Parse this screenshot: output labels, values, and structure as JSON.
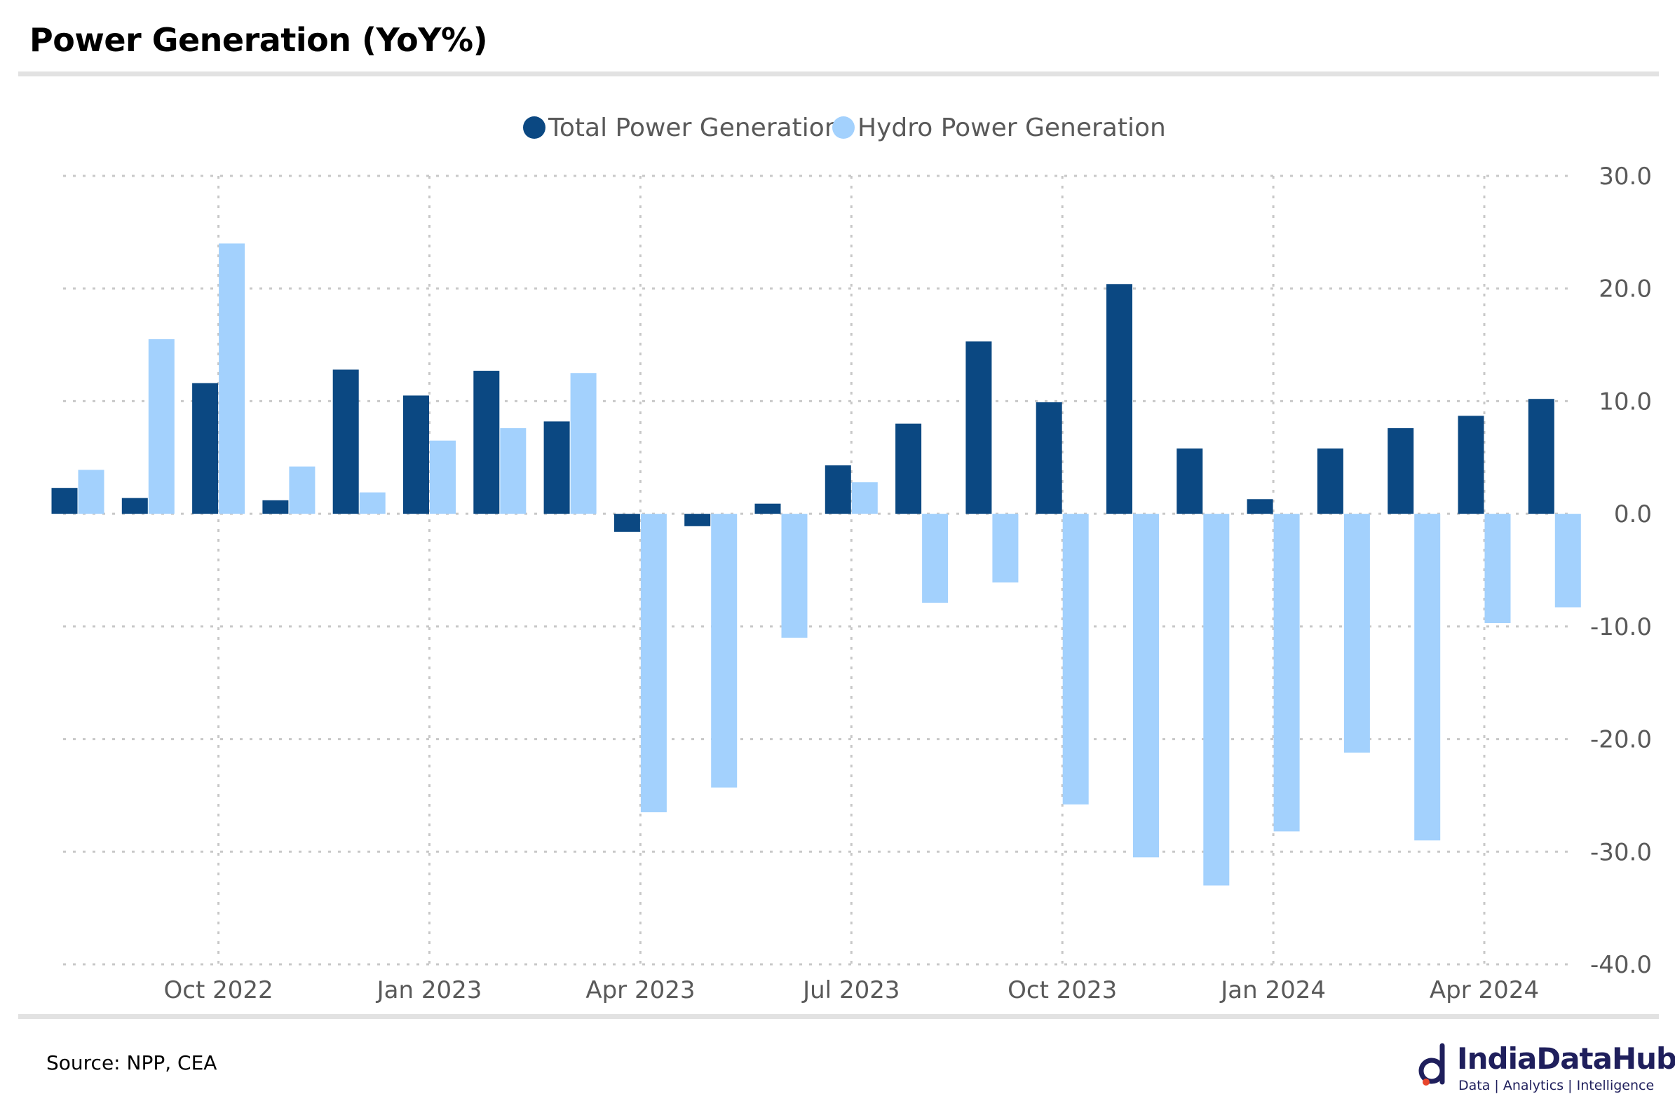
{
  "title": "Power Generation (YoY%)",
  "source": "Source: NPP, CEA",
  "logo": {
    "name": "IndiaDataHub",
    "tagline": "Data | Analytics | Intelligence"
  },
  "colors": {
    "total": "#0b4882",
    "hydro": "#a3d1fd",
    "grid": "#c8c8c8",
    "rule": "#e2e2e2"
  },
  "chart_data": {
    "type": "bar",
    "title": "Power Generation (YoY%)",
    "legend_position": "top",
    "grid": true,
    "y_axis_position": "right",
    "ylim": [
      -40,
      30
    ],
    "y_ticks": [
      "30.0",
      "20.0",
      "10.0",
      "0.0",
      "-10.0",
      "-20.0",
      "-30.0",
      "-40.0"
    ],
    "y_tick_values": [
      30,
      20,
      10,
      0,
      -10,
      -20,
      -30,
      -40
    ],
    "categories": [
      "Aug 2022",
      "Sep 2022",
      "Oct 2022",
      "Nov 2022",
      "Dec 2022",
      "Jan 2023",
      "Feb 2023",
      "Mar 2023",
      "Apr 2023",
      "May 2023",
      "Jun 2023",
      "Jul 2023",
      "Aug 2023",
      "Sep 2023",
      "Oct 2023",
      "Nov 2023",
      "Dec 2023",
      "Jan 2024",
      "Feb 2024",
      "Mar 2024",
      "Apr 2024",
      "May 2024"
    ],
    "x_tick_labels": [
      {
        "label": "Oct 2022",
        "category": "Oct 2022"
      },
      {
        "label": "Jan 2023",
        "category": "Jan 2023"
      },
      {
        "label": "Apr 2023",
        "category": "Apr 2023"
      },
      {
        "label": "Jul 2023",
        "category": "Jul 2023"
      },
      {
        "label": "Oct 2023",
        "category": "Oct 2023"
      },
      {
        "label": "Jan 2024",
        "category": "Jan 2024"
      },
      {
        "label": "Apr 2024",
        "category": "Apr 2024"
      }
    ],
    "series": [
      {
        "name": "Total Power Generation",
        "color": "#0b4882",
        "values": [
          2.3,
          1.4,
          11.6,
          1.2,
          12.8,
          10.5,
          12.7,
          8.2,
          -1.6,
          -1.1,
          0.9,
          4.3,
          8.0,
          15.3,
          9.9,
          20.4,
          5.8,
          1.3,
          5.8,
          7.6,
          8.7,
          10.2
        ]
      },
      {
        "name": "Hydro Power Generation",
        "color": "#a3d1fd",
        "values": [
          3.9,
          15.5,
          24.0,
          4.2,
          1.9,
          6.5,
          7.6,
          12.5,
          -26.5,
          -24.3,
          -11.0,
          2.8,
          -7.9,
          -6.1,
          -25.8,
          -30.5,
          -33.0,
          -28.2,
          -21.2,
          -29.0,
          -9.7,
          -8.3
        ]
      }
    ]
  }
}
